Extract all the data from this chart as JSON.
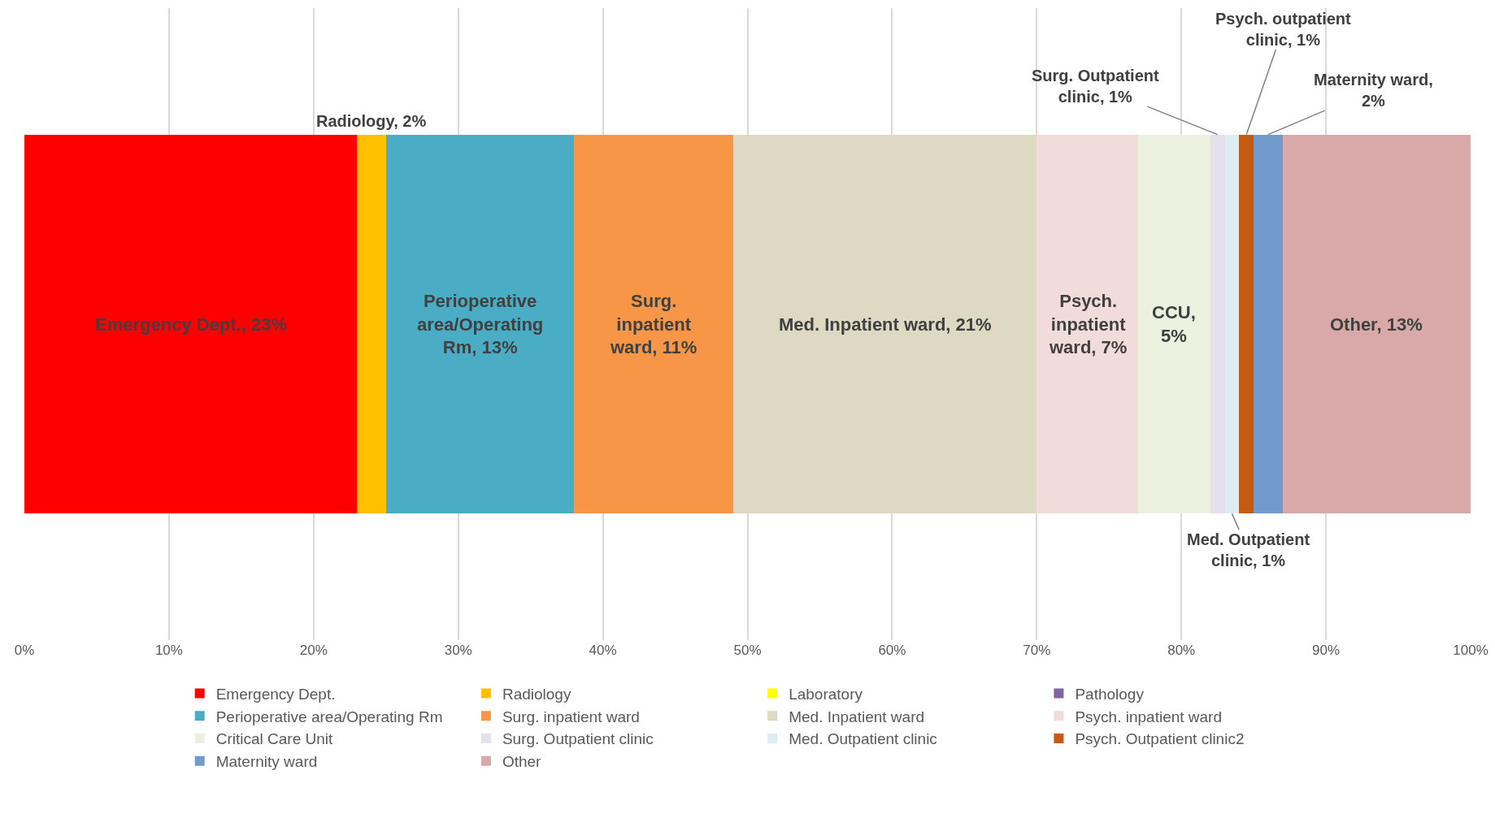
{
  "chart_data": {
    "type": "bar",
    "orientation": "horizontal",
    "stacked": true,
    "categories": [
      null
    ],
    "xlim": [
      0,
      100
    ],
    "xticks": [
      {
        "value": 0,
        "label": "0%"
      },
      {
        "value": 10,
        "label": "10%"
      },
      {
        "value": 20,
        "label": "20%"
      },
      {
        "value": 30,
        "label": "30%"
      },
      {
        "value": 40,
        "label": "40%"
      },
      {
        "value": 50,
        "label": "50%"
      },
      {
        "value": 60,
        "label": "60%"
      },
      {
        "value": 70,
        "label": "70%"
      },
      {
        "value": 80,
        "label": "80%"
      },
      {
        "value": 90,
        "label": "90%"
      },
      {
        "value": 100,
        "label": "100%"
      }
    ],
    "grid": "x",
    "legend": "bottom",
    "tick_labels": "x",
    "series": [
      {
        "name": "Emergency Dept.",
        "color": "#ff0000",
        "values": [
          23
        ],
        "value_labels": [
          "Emergency Dept., 23%"
        ]
      },
      {
        "name": "Radiology",
        "color": "#ffc000",
        "values": [
          2
        ],
        "value_labels": [
          "Radiology, 2%"
        ]
      },
      {
        "name": "Laboratory",
        "color": "#ffff00",
        "values": [
          0
        ],
        "value_labels": [
          null
        ]
      },
      {
        "name": "Pathology",
        "color": "#8064a2",
        "values": [
          0
        ],
        "value_labels": [
          null
        ]
      },
      {
        "name": "Perioperative area/Operating Rm",
        "color": "#4bacc6",
        "values": [
          13
        ],
        "value_labels": [
          "Perioperative area/Operating Rm, 13%"
        ]
      },
      {
        "name": "Surg. inpatient ward",
        "color": "#f79646",
        "values": [
          11
        ],
        "value_labels": [
          "Surg. inpatient ward, 11%"
        ]
      },
      {
        "name": "Med. Inpatient ward",
        "color": "#ddd9c3",
        "values": [
          21
        ],
        "value_labels": [
          "Med. Inpatient ward, 21%"
        ]
      },
      {
        "name": "Psych. inpatient ward",
        "color": "#f2dcdb",
        "values": [
          7
        ],
        "value_labels": [
          "Psych. inpatient ward, 7%"
        ]
      },
      {
        "name": "Critical Care Unit",
        "color": "#ebf1de",
        "values": [
          5
        ],
        "value_labels": [
          "CCU, 5%"
        ]
      },
      {
        "name": "Surg. Outpatient clinic",
        "color": "#e6e0ec",
        "values": [
          1
        ],
        "value_labels": [
          "Surg. Outpatient clinic, 1%"
        ]
      },
      {
        "name": "Med. Outpatient clinic",
        "color": "#dbeef4",
        "values": [
          1
        ],
        "value_labels": [
          "Med. Outpatient clinic, 1%"
        ]
      },
      {
        "name": "Psych. Outpatient clinic2",
        "color": "#c55a11",
        "values": [
          1
        ],
        "value_labels": [
          "Psych. outpatient clinic, 1%"
        ]
      },
      {
        "name": "Maternity ward",
        "color": "#729aca",
        "values": [
          2
        ],
        "value_labels": [
          "Maternity ward, 2%"
        ]
      },
      {
        "name": "Other",
        "color": "#d9a9a9",
        "values": [
          13
        ],
        "value_labels": [
          "Other, 13%"
        ]
      }
    ]
  }
}
